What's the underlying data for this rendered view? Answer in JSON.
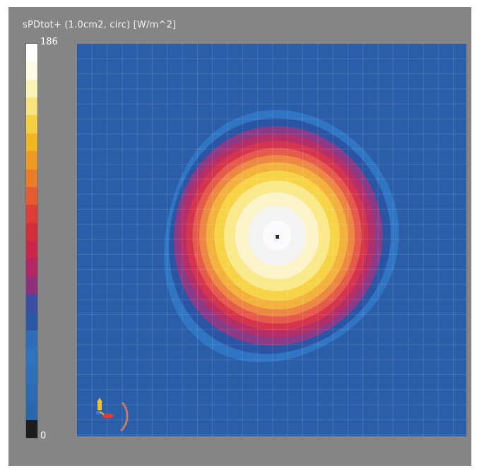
{
  "chart_data": {
    "type": "heatmap",
    "title": "sPDtot+ (1.0cm2, circ) [W/m^2]",
    "colorbar": {
      "max_label": "186",
      "min_label": "0",
      "vmin": 0,
      "vmax": 186,
      "colors_top_to_bottom": [
        "#ffffff",
        "#fdfbe6",
        "#fbf2b6",
        "#f8e47c",
        "#f4cf3f",
        "#f0b722",
        "#ee9a22",
        "#ec7d27",
        "#e65b30",
        "#e03b34",
        "#d52c3a",
        "#c92649",
        "#b32664",
        "#8e2f7c",
        "#3c4ca2",
        "#2b58a5",
        "#2f6dba",
        "#2f72bf",
        "#2e6fba",
        "#2c6ab3",
        "#2b66ad",
        "#1d1d1d"
      ]
    },
    "field": {
      "background_color": "#2b5ea8",
      "grid": true,
      "peak_value": 186,
      "peak_marker": true,
      "contours_outer_to_inner": [
        {
          "fraction_of_max": 0.06,
          "color": "#2f75c3"
        },
        {
          "fraction_of_max": 0.12,
          "color": "#2a55a4"
        },
        {
          "fraction_of_max": 0.18,
          "color": "#8a3a86"
        },
        {
          "fraction_of_max": 0.24,
          "color": "#b42e68"
        },
        {
          "fraction_of_max": 0.3,
          "color": "#d4344e"
        },
        {
          "fraction_of_max": 0.36,
          "color": "#e55a4a"
        },
        {
          "fraction_of_max": 0.42,
          "color": "#ed8744"
        },
        {
          "fraction_of_max": 0.48,
          "color": "#f3b13d"
        },
        {
          "fraction_of_max": 0.55,
          "color": "#f7d447"
        },
        {
          "fraction_of_max": 0.63,
          "color": "#f9e98a"
        },
        {
          "fraction_of_max": 0.72,
          "color": "#fbf4c9"
        },
        {
          "fraction_of_max": 0.82,
          "color": "#f3f3f4"
        },
        {
          "fraction_of_max": 0.92,
          "color": "#fbfbfd"
        }
      ]
    }
  },
  "orientation_gizmo": {
    "icon": "axis-triad-icon"
  }
}
